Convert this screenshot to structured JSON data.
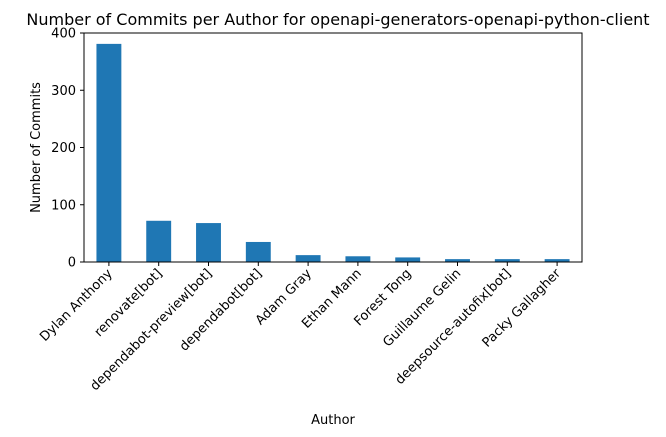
{
  "chart_data": {
    "type": "bar",
    "title": "Number of Commits per Author for openapi-generators-openapi-python-client",
    "xlabel": "Author",
    "ylabel": "Number of Commits",
    "categories": [
      "Dylan Anthony",
      "renovate[bot]",
      "dependabot-preview[bot]",
      "dependabot[bot]",
      "Adam Gray",
      "Ethan Mann",
      "Forest Tong",
      "Guillaume Gelin",
      "deepsource-autofix[bot]",
      "Packy Gallagher"
    ],
    "values": [
      381,
      72,
      68,
      35,
      12,
      10,
      8,
      5,
      5,
      5
    ],
    "ylim": [
      0,
      400
    ],
    "yticks": [
      0,
      100,
      200,
      300,
      400
    ],
    "bar_color": "#1f77b4",
    "grid": false,
    "legend": "none"
  }
}
